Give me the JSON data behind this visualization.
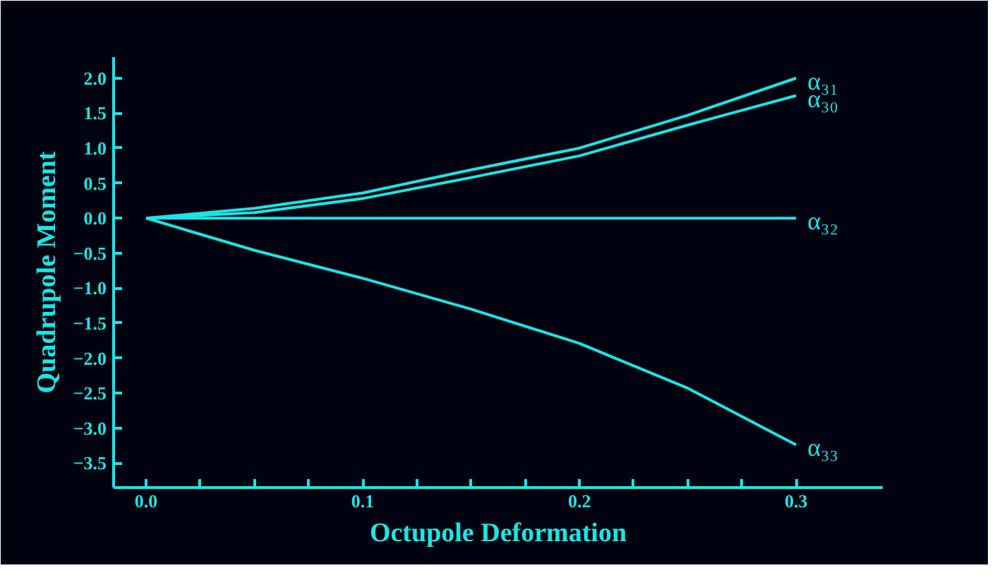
{
  "chart_data": {
    "type": "line",
    "xlabel": "Octupole Deformation",
    "ylabel": "Quadrupole Moment",
    "x": [
      0,
      0.05,
      0.1,
      0.15,
      0.2,
      0.25,
      0.3
    ],
    "series": [
      {
        "name": "α₃₁",
        "color": "#19e6e6",
        "values": [
          0,
          0.14,
          0.36,
          0.69,
          1.0,
          1.47,
          2.0
        ]
      },
      {
        "name": "α₃₀",
        "color": "#19e6e6",
        "values": [
          0,
          0.08,
          0.28,
          0.58,
          0.89,
          1.33,
          1.75
        ]
      },
      {
        "name": "α₃₂",
        "color": "#19e6e6",
        "values": [
          0,
          0,
          0,
          0,
          0,
          0,
          0
        ]
      },
      {
        "name": "α₃₃",
        "color": "#19e6e6",
        "values": [
          0,
          -0.46,
          -0.86,
          -1.3,
          -1.79,
          -2.43,
          -3.24
        ]
      }
    ],
    "xlim": [
      -0.015,
      0.34
    ],
    "ylim": [
      -3.85,
      2.3
    ],
    "xticks": [
      {
        "value": 0,
        "label": "0.0"
      },
      {
        "value": 0.025,
        "label": null
      },
      {
        "value": 0.05,
        "label": null
      },
      {
        "value": 0.075,
        "label": null
      },
      {
        "value": 0.1,
        "label": "0.1"
      },
      {
        "value": 0.125,
        "label": null
      },
      {
        "value": 0.15,
        "label": null
      },
      {
        "value": 0.175,
        "label": null
      },
      {
        "value": 0.2,
        "label": "0.2"
      },
      {
        "value": 0.225,
        "label": null
      },
      {
        "value": 0.25,
        "label": null
      },
      {
        "value": 0.275,
        "label": null
      },
      {
        "value": 0.3,
        "label": "0.3"
      }
    ],
    "yticks": [
      {
        "value": -3.5,
        "label": "−3.5"
      },
      {
        "value": -3.0,
        "label": "−3.0"
      },
      {
        "value": -2.5,
        "label": "−2.5"
      },
      {
        "value": -2.0,
        "label": "−2.0"
      },
      {
        "value": -1.5,
        "label": "−1.5"
      },
      {
        "value": -1.0,
        "label": "−1.0"
      },
      {
        "value": -0.5,
        "label": "−0.5"
      },
      {
        "value": 0,
        "label": "0.0"
      },
      {
        "value": 0.5,
        "label": "0.5"
      },
      {
        "value": 1.0,
        "label": "1.0"
      },
      {
        "value": 1.5,
        "label": "1.5"
      },
      {
        "value": 2.0,
        "label": "2.0"
      }
    ],
    "grid": false,
    "line_style": "solid",
    "marker": "none"
  }
}
